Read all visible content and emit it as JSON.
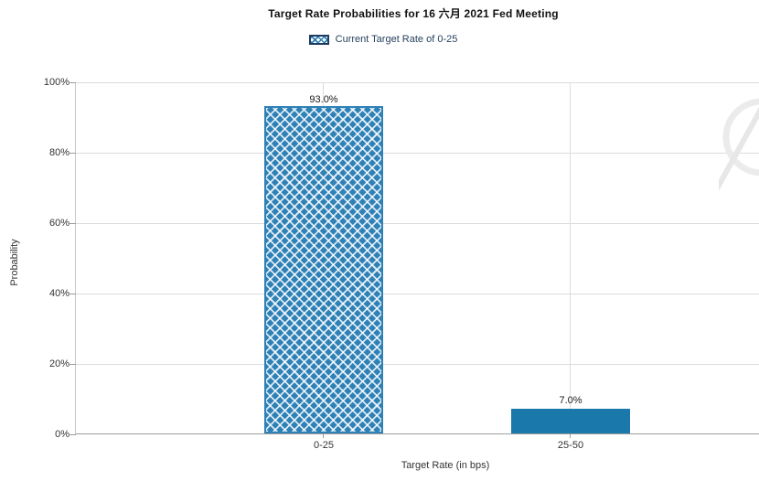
{
  "title": "Target Rate Probabilities for 16 六月 2021 Fed Meeting",
  "legend": {
    "swatch": "blue-crosshatch-swatch",
    "label": "Current Target Rate of 0-25"
  },
  "colors": {
    "bar_solid": "#1b78ab",
    "bar_hatch_base": "#2e81b6",
    "hatch_lines": "#ffffff",
    "legend_swatch_border": "#1f3a5f",
    "gridline": "#dcdcdc",
    "axis_line": "#9d9d9d",
    "text": "#333333",
    "watermark": "#ebebeb"
  },
  "chart_data": {
    "type": "bar",
    "title": "Target Rate Probabilities for 16 六月 2021 Fed Meeting",
    "series_name": "Current Target Rate of 0-25",
    "categories": [
      "0-25",
      "25-50"
    ],
    "values": [
      93.0,
      7.0
    ],
    "value_labels": [
      "93.0%",
      "7.0%"
    ],
    "bar_styles": [
      "crosshatch",
      "solid"
    ],
    "xlabel": "Target Rate (in bps)",
    "ylabel": "Probability",
    "ylim": [
      0,
      100
    ],
    "ytick_labels": [
      "100%",
      "80%",
      "60%",
      "40%",
      "20%",
      "0%"
    ],
    "grid": true,
    "legend_position": "top-center"
  }
}
